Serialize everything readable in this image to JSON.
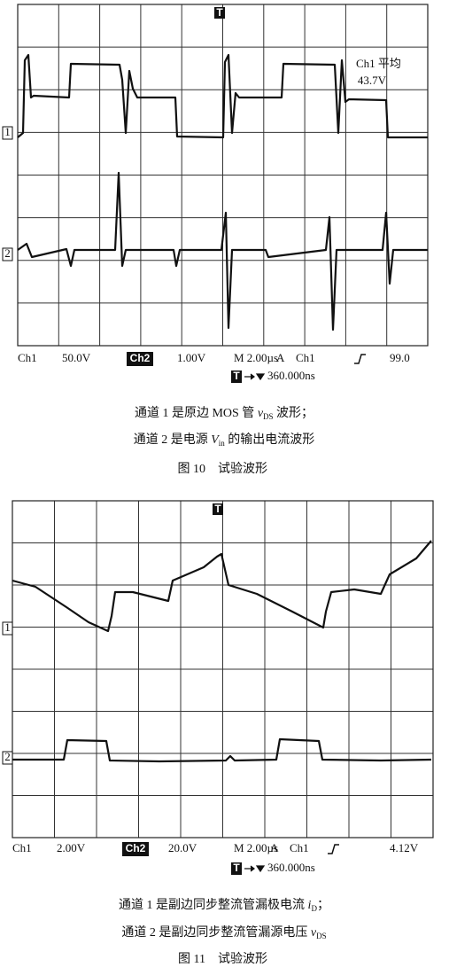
{
  "figures": [
    {
      "scope": {
        "trigger_marker": "T",
        "ch1_marker": "1",
        "ch2_marker": "2",
        "measurement": {
          "label": "Ch1 平均",
          "value": "43.7V"
        },
        "status": {
          "ch1": "Ch1",
          "ch1_scale": "50.0V",
          "ch2": "Ch2",
          "ch2_scale": "1.00V",
          "timebase": "M 2.00µs",
          "trigger_mode": "A",
          "trigger_source": "Ch1",
          "trigger_level": "99.0",
          "position": "360.000ns"
        }
      },
      "captions": [
        {
          "text": "通道 1 是原边 MOS 管 ",
          "var": "v",
          "sub": "DS",
          "rest": " 波形；"
        },
        {
          "text": "通道 2 是电源 ",
          "var": "V",
          "sub": "in",
          "rest": " 的输出电流波形"
        }
      ],
      "figure_label": "图 10",
      "figure_title": "试验波形"
    },
    {
      "scope": {
        "trigger_marker": "T",
        "ch1_marker": "1",
        "ch2_marker": "2",
        "status": {
          "ch1": "Ch1",
          "ch1_scale": "2.00V",
          "ch2": "Ch2",
          "ch2_scale": "20.0V",
          "timebase": "M 2.00µs",
          "trigger_mode": "A",
          "trigger_source": "Ch1",
          "trigger_level": "4.12V",
          "position": "360.000ns"
        }
      },
      "captions": [
        {
          "text": "通道 1 是副边同步整流管漏极电流 ",
          "var": "i",
          "sub": "D",
          "rest": "；"
        },
        {
          "text": "通道 2 是副边同步整流管漏源电压 ",
          "var": "v",
          "sub": "DS",
          "rest": ""
        }
      ],
      "figure_label": "图 11",
      "figure_title": "试验波形"
    }
  ]
}
